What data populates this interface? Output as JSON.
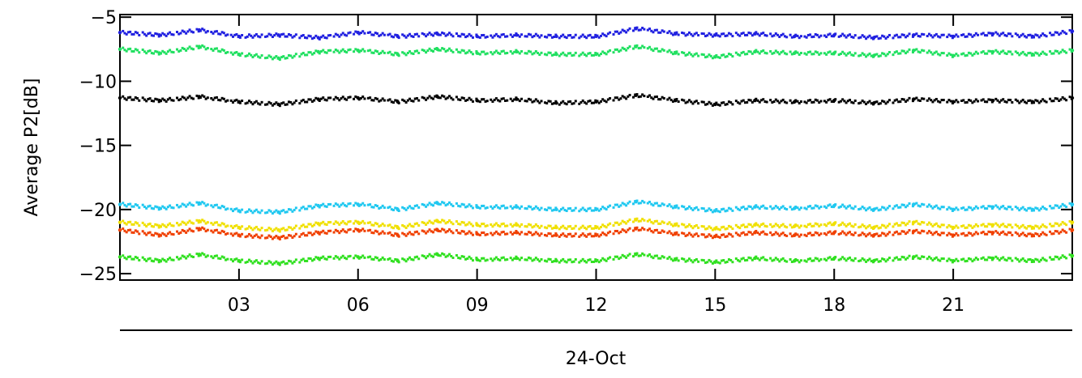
{
  "chart_data": {
    "type": "scatter",
    "title": "",
    "ylabel": "Average P2[dB]",
    "xlabel": "24-Oct",
    "xlim": [
      0,
      24
    ],
    "ylim": [
      -25.5,
      -4.8
    ],
    "xticks": [
      3,
      6,
      9,
      12,
      15,
      18,
      21
    ],
    "xtick_labels": [
      "03",
      "06",
      "09",
      "12",
      "15",
      "18",
      "21"
    ],
    "yticks": [
      -5,
      -10,
      -15,
      -20,
      -25
    ],
    "ytick_labels": [
      "−5",
      "−10",
      "−15",
      "−20",
      "−25"
    ],
    "grid": false,
    "legend": "none",
    "series": [
      {
        "color": "#2020e0",
        "x": [
          0,
          1,
          2,
          3,
          4,
          5,
          6,
          7,
          8,
          9,
          10,
          11,
          12,
          13,
          14,
          15,
          16,
          17,
          18,
          19,
          20,
          21,
          22,
          23,
          24
        ],
        "values": [
          -6.2,
          -6.4,
          -6.0,
          -6.5,
          -6.4,
          -6.6,
          -6.2,
          -6.5,
          -6.3,
          -6.5,
          -6.4,
          -6.5,
          -6.5,
          -5.9,
          -6.3,
          -6.4,
          -6.3,
          -6.5,
          -6.4,
          -6.6,
          -6.4,
          -6.5,
          -6.3,
          -6.5,
          -6.1
        ]
      },
      {
        "color": "#20e060",
        "x": [
          0,
          1,
          2,
          3,
          4,
          5,
          6,
          7,
          8,
          9,
          10,
          11,
          12,
          13,
          14,
          15,
          16,
          17,
          18,
          19,
          20,
          21,
          22,
          23,
          24
        ],
        "values": [
          -7.5,
          -7.8,
          -7.3,
          -7.9,
          -8.2,
          -7.7,
          -7.6,
          -7.9,
          -7.5,
          -7.8,
          -7.7,
          -7.9,
          -7.9,
          -7.3,
          -7.8,
          -8.1,
          -7.7,
          -7.8,
          -7.8,
          -8.0,
          -7.6,
          -8.0,
          -7.7,
          -7.9,
          -7.6
        ]
      },
      {
        "color": "#000000",
        "x": [
          0,
          1,
          2,
          3,
          4,
          5,
          6,
          7,
          8,
          9,
          10,
          11,
          12,
          13,
          14,
          15,
          16,
          17,
          18,
          19,
          20,
          21,
          22,
          23,
          24
        ],
        "values": [
          -11.3,
          -11.5,
          -11.2,
          -11.6,
          -11.8,
          -11.4,
          -11.3,
          -11.6,
          -11.2,
          -11.5,
          -11.4,
          -11.7,
          -11.6,
          -11.1,
          -11.5,
          -11.8,
          -11.5,
          -11.6,
          -11.5,
          -11.7,
          -11.4,
          -11.6,
          -11.5,
          -11.6,
          -11.3
        ]
      },
      {
        "color": "#20c8f0",
        "x": [
          0,
          1,
          2,
          3,
          4,
          5,
          6,
          7,
          8,
          9,
          10,
          11,
          12,
          13,
          14,
          15,
          16,
          17,
          18,
          19,
          20,
          21,
          22,
          23,
          24
        ],
        "values": [
          -19.6,
          -19.9,
          -19.5,
          -20.1,
          -20.2,
          -19.7,
          -19.6,
          -20.0,
          -19.5,
          -19.8,
          -19.8,
          -20.0,
          -20.0,
          -19.4,
          -19.8,
          -20.1,
          -19.8,
          -19.9,
          -19.7,
          -20.0,
          -19.6,
          -20.0,
          -19.8,
          -20.0,
          -19.6
        ]
      },
      {
        "color": "#f0e000",
        "x": [
          0,
          1,
          2,
          3,
          4,
          5,
          6,
          7,
          8,
          9,
          10,
          11,
          12,
          13,
          14,
          15,
          16,
          17,
          18,
          19,
          20,
          21,
          22,
          23,
          24
        ],
        "values": [
          -21.0,
          -21.3,
          -20.9,
          -21.4,
          -21.6,
          -21.1,
          -21.0,
          -21.4,
          -20.9,
          -21.2,
          -21.2,
          -21.4,
          -21.4,
          -20.8,
          -21.2,
          -21.5,
          -21.2,
          -21.3,
          -21.1,
          -21.4,
          -21.0,
          -21.4,
          -21.2,
          -21.4,
          -21.0
        ]
      },
      {
        "color": "#f04000",
        "x": [
          0,
          1,
          2,
          3,
          4,
          5,
          6,
          7,
          8,
          9,
          10,
          11,
          12,
          13,
          14,
          15,
          16,
          17,
          18,
          19,
          20,
          21,
          22,
          23,
          24
        ],
        "values": [
          -21.6,
          -22.0,
          -21.5,
          -22.0,
          -22.2,
          -21.8,
          -21.6,
          -22.0,
          -21.6,
          -21.9,
          -21.8,
          -22.0,
          -22.0,
          -21.5,
          -21.9,
          -22.1,
          -21.8,
          -22.0,
          -21.8,
          -22.0,
          -21.7,
          -22.0,
          -21.8,
          -22.0,
          -21.6
        ]
      },
      {
        "color": "#30e020",
        "x": [
          0,
          1,
          2,
          3,
          4,
          5,
          6,
          7,
          8,
          9,
          10,
          11,
          12,
          13,
          14,
          15,
          16,
          17,
          18,
          19,
          20,
          21,
          22,
          23,
          24
        ],
        "values": [
          -23.7,
          -24.0,
          -23.5,
          -24.0,
          -24.2,
          -23.8,
          -23.7,
          -24.0,
          -23.5,
          -23.9,
          -23.8,
          -24.0,
          -24.0,
          -23.5,
          -23.9,
          -24.1,
          -23.8,
          -24.0,
          -23.8,
          -24.0,
          -23.7,
          -24.0,
          -23.8,
          -24.0,
          -23.6
        ]
      }
    ]
  }
}
